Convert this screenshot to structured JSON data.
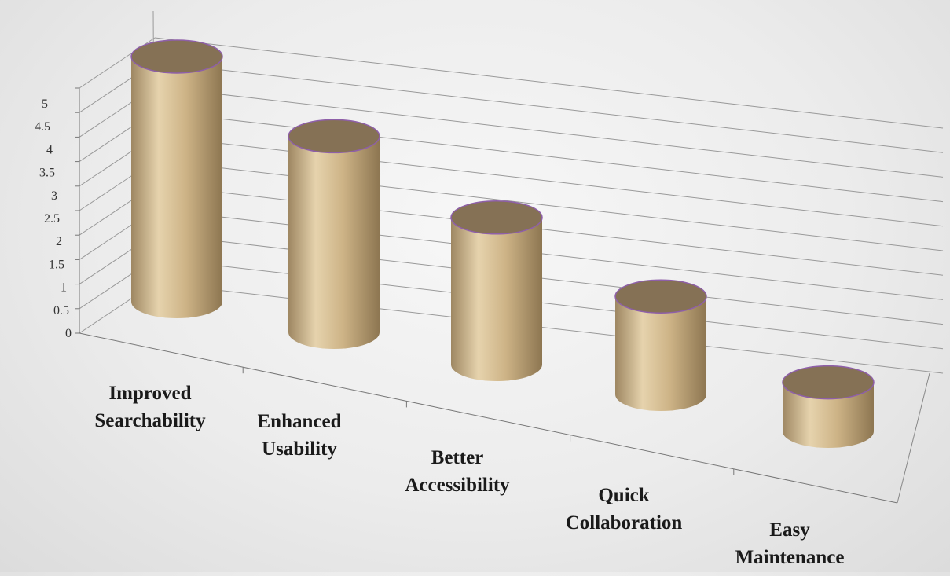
{
  "chart_data": {
    "type": "bar",
    "bar_shape": "3d-cylinder",
    "categories": [
      [
        "Improved",
        "Searchability"
      ],
      [
        "Enhanced",
        "Usability"
      ],
      [
        "Better",
        "Accessibility"
      ],
      [
        "Quick",
        "Collaboration"
      ],
      [
        "Easy",
        "Maintenance"
      ]
    ],
    "values": [
      5,
      4,
      3,
      2,
      1
    ],
    "ylim": [
      0,
      5
    ],
    "yticks": [
      "0",
      "0.5",
      "1",
      "1.5",
      "2",
      "2.5",
      "3",
      "3.5",
      "4",
      "4.5",
      "5"
    ],
    "grid": true,
    "legend": "none",
    "colors": {
      "bar_body_light": "#e3cfa7",
      "bar_body_mid": "#c8ad80",
      "bar_body_dark": "#9c8359",
      "bar_top": "#857155",
      "bar_outline": "#8e5fa8",
      "gridline": "#999999"
    }
  }
}
